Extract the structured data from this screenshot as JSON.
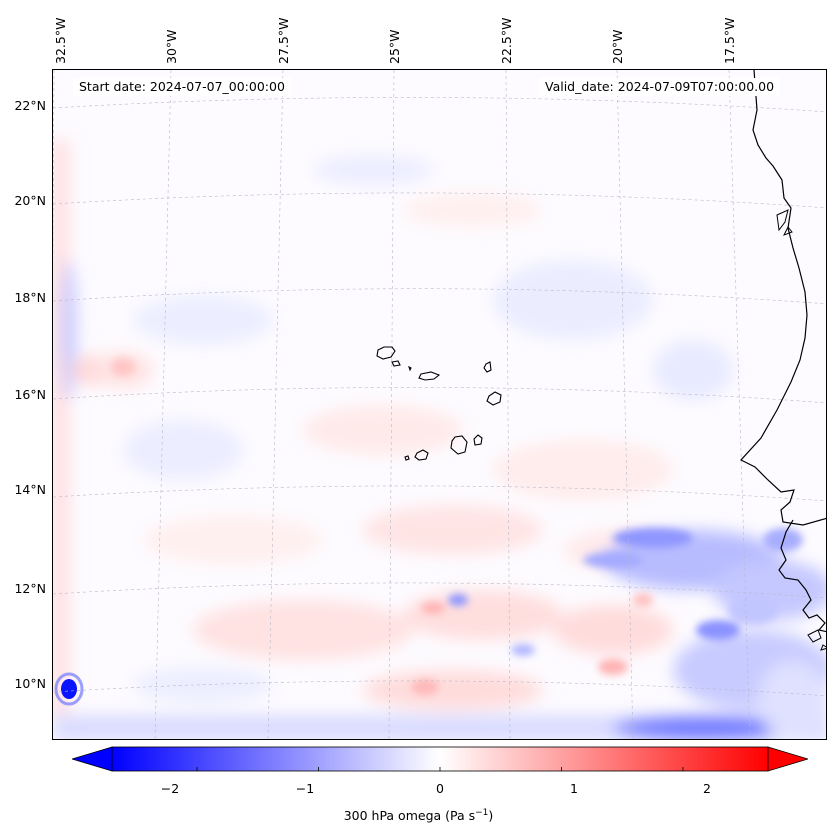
{
  "map": {
    "start_date": "Start date: 2024-07-07_00:00:00",
    "valid_date": "Valid_date: 2024-07-09T07:00:00.00",
    "lon_labels": [
      "32.5°W",
      "30°W",
      "27.5°W",
      "25°W",
      "22.5°W",
      "20°W",
      "17.5°W"
    ],
    "lat_labels": [
      "22°N",
      "20°N",
      "18°N",
      "16°N",
      "14°N",
      "12°N",
      "10°N"
    ],
    "gridlines": true,
    "field": "300 hPa omega",
    "colormap": "bwr"
  },
  "colorbar": {
    "ticks": [
      "−2",
      "−1",
      "0",
      "1",
      "2"
    ],
    "tick_values": [
      -2,
      -1,
      0,
      1,
      2
    ],
    "range": [
      -2.7,
      2.7
    ],
    "extend": "both",
    "colors": {
      "min": "#0000ff",
      "mid": "#ffffff",
      "max": "#ff0000"
    },
    "label_prefix": "300 hPa omega (Pa s",
    "label_exp": "−1",
    "label_suffix": ")"
  }
}
